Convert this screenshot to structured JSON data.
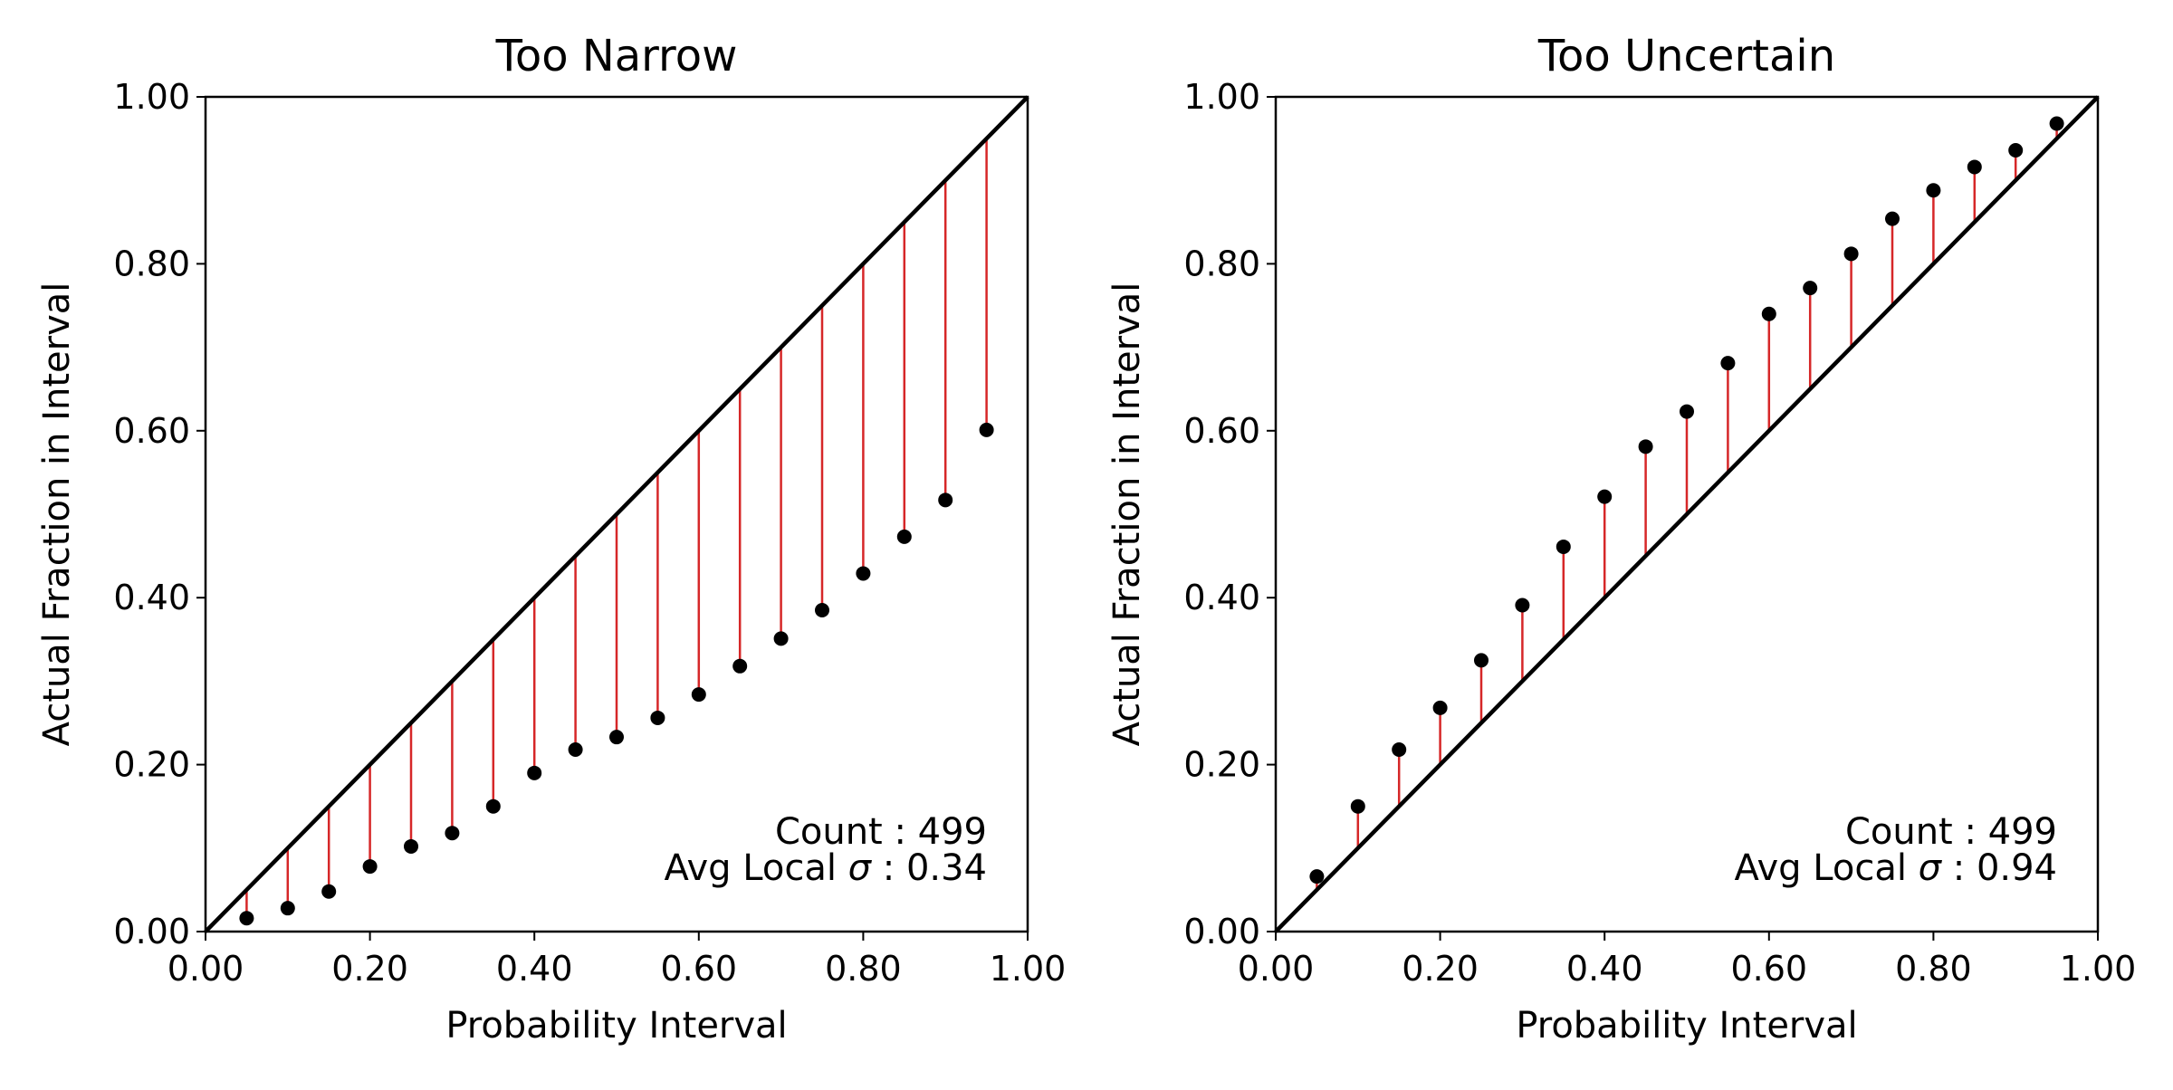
{
  "figure": {
    "background": "#ffffff",
    "stem_color": "#d62728",
    "point_color": "#000000",
    "diagonal_color": "#000000"
  },
  "chart_data": [
    {
      "type": "scatter",
      "title": "Too Narrow",
      "xlabel": "Probability Interval",
      "ylabel": "Actual Fraction in Interval",
      "xlim": [
        0,
        1
      ],
      "ylim": [
        0,
        1
      ],
      "xticks": [
        "0.00",
        "0.20",
        "0.40",
        "0.60",
        "0.80",
        "1.00"
      ],
      "yticks": [
        "0.00",
        "0.20",
        "0.40",
        "0.60",
        "0.80",
        "1.00"
      ],
      "reference_line": "y = x",
      "grid": false,
      "x": [
        0.05,
        0.1,
        0.15,
        0.2,
        0.25,
        0.3,
        0.35,
        0.4,
        0.45,
        0.5,
        0.55,
        0.6,
        0.65,
        0.7,
        0.75,
        0.8,
        0.85,
        0.9,
        0.95
      ],
      "y": [
        0.016,
        0.028,
        0.048,
        0.078,
        0.102,
        0.118,
        0.15,
        0.19,
        0.218,
        0.233,
        0.256,
        0.284,
        0.318,
        0.351,
        0.385,
        0.429,
        0.473,
        0.517,
        0.601
      ],
      "stems": "vertical lines from each point to the y = x diagonal",
      "annotation": {
        "count_label": "Count : 499",
        "sigma_prefix": "Avg Local ",
        "sigma_symbol": "σ",
        "sigma_value": " : 0.34"
      }
    },
    {
      "type": "scatter",
      "title": "Too Uncertain",
      "xlabel": "Probability Interval",
      "ylabel": "Actual Fraction in Interval",
      "xlim": [
        0,
        1
      ],
      "ylim": [
        0,
        1
      ],
      "xticks": [
        "0.00",
        "0.20",
        "0.40",
        "0.60",
        "0.80",
        "1.00"
      ],
      "yticks": [
        "0.00",
        "0.20",
        "0.40",
        "0.60",
        "0.80",
        "1.00"
      ],
      "reference_line": "y = x",
      "grid": false,
      "x": [
        0.05,
        0.1,
        0.15,
        0.2,
        0.25,
        0.3,
        0.35,
        0.4,
        0.45,
        0.5,
        0.55,
        0.6,
        0.65,
        0.7,
        0.75,
        0.8,
        0.85,
        0.9,
        0.95
      ],
      "y": [
        0.066,
        0.15,
        0.218,
        0.268,
        0.325,
        0.391,
        0.461,
        0.521,
        0.581,
        0.623,
        0.681,
        0.74,
        0.771,
        0.812,
        0.854,
        0.888,
        0.916,
        0.936,
        0.968
      ],
      "stems": "vertical lines from each point to the y = x diagonal",
      "annotation": {
        "count_label": "Count : 499",
        "sigma_prefix": "Avg Local ",
        "sigma_symbol": "σ",
        "sigma_value": " : 0.94"
      }
    }
  ]
}
